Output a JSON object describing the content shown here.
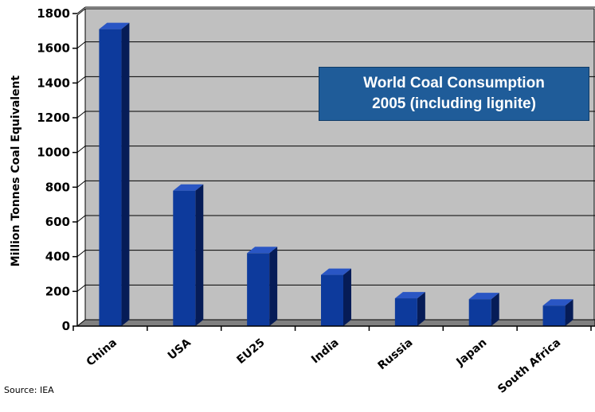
{
  "chart_data": {
    "type": "bar",
    "title_lines": [
      "World Coal Consumption",
      "2005 (including lignite)"
    ],
    "ylabel": "Million Tonnes Coal Equivalent",
    "xlabel": "",
    "categories": [
      "China",
      "USA",
      "EU25",
      "India",
      "Russia",
      "Japan",
      "South Africa"
    ],
    "values": [
      1710,
      780,
      420,
      295,
      160,
      155,
      118
    ],
    "ylim": [
      0,
      1800
    ],
    "yticks": [
      0,
      200,
      400,
      600,
      800,
      1000,
      1200,
      1400,
      1600,
      1800
    ],
    "grid": true,
    "colors": {
      "plot_background": "#c0c0c0",
      "floor": "#808080",
      "bar_front": "#0d3a9c",
      "bar_side": "#061c57",
      "bar_top": "#2a56c4",
      "title_box": "#1f5c99"
    }
  },
  "source": "Source: IEA"
}
